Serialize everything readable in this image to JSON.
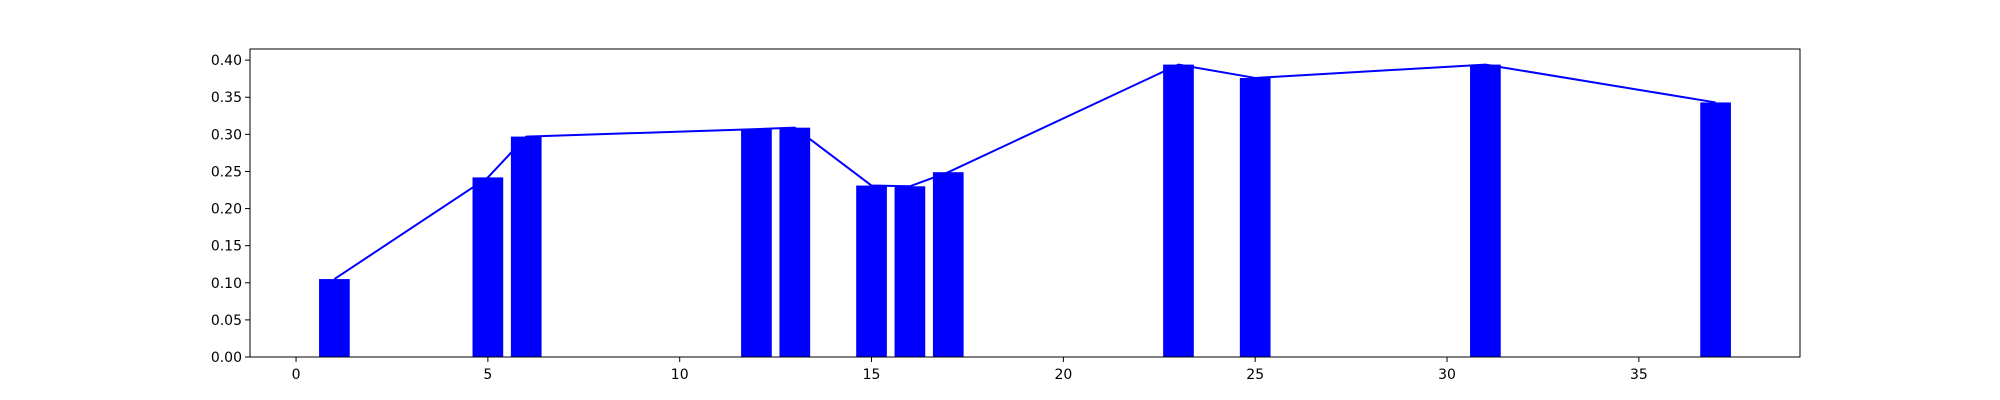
{
  "chart_data": {
    "type": "bar",
    "title": "",
    "xlabel": "",
    "ylabel": "",
    "x": [
      1,
      5,
      6,
      12,
      13,
      15,
      16,
      17,
      23,
      25,
      31,
      37
    ],
    "values": [
      0.105,
      0.242,
      0.297,
      0.307,
      0.309,
      0.231,
      0.23,
      0.249,
      0.394,
      0.376,
      0.394,
      0.343
    ],
    "overlay": "line",
    "xlim": [
      -1.2,
      39.2
    ],
    "ylim": [
      0,
      0.415
    ],
    "xticks": [
      0,
      5,
      10,
      15,
      20,
      25,
      30,
      35
    ],
    "xtick_labels": [
      "0",
      "5",
      "10",
      "15",
      "20",
      "25",
      "30",
      "35"
    ],
    "yticks": [
      0.0,
      0.05,
      0.1,
      0.15,
      0.2,
      0.25,
      0.3,
      0.35,
      0.4
    ],
    "ytick_labels": [
      "0.00",
      "0.05",
      "0.10",
      "0.15",
      "0.20",
      "0.25",
      "0.30",
      "0.35",
      "0.40"
    ],
    "bar_width": 0.8,
    "grid": false,
    "legend": "none",
    "color": "#0000ff"
  }
}
